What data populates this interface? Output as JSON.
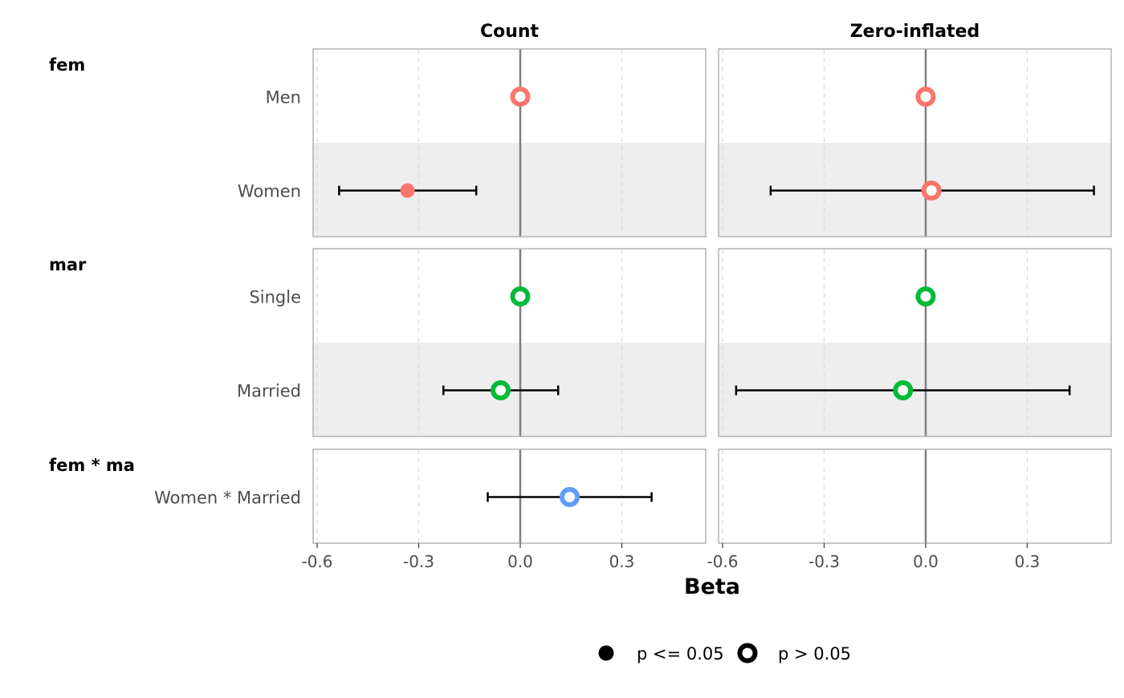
{
  "chart_data": {
    "type": "scatter",
    "subtype": "forest plot with confidence intervals, faceted",
    "xlabel": "Beta",
    "xlim": [
      -0.61,
      0.56
    ],
    "x_ticks": [
      -0.6,
      -0.3,
      0.0,
      0.3
    ],
    "x_tick_labels": [
      "-0.6",
      "-0.3",
      "0.0",
      "0.3"
    ],
    "reference_line": 0,
    "grid": "vertical dashed",
    "facets": [
      "Count",
      "Zero-inflated"
    ],
    "groups": [
      {
        "label": "fem",
        "color": "#F8766D",
        "terms": [
          {
            "label": "Men",
            "shaded": false,
            "Count": {
              "est": 0.0,
              "lo": null,
              "hi": null,
              "sig": false
            },
            "Zero-inflated": {
              "est": 0.0,
              "lo": null,
              "hi": null,
              "sig": false
            }
          },
          {
            "label": "Women",
            "shaded": true,
            "Count": {
              "est": -0.333,
              "lo": -0.535,
              "hi": -0.13,
              "sig": true
            },
            "Zero-inflated": {
              "est": 0.017,
              "lo": -0.458,
              "hi": 0.497,
              "sig": false
            }
          }
        ]
      },
      {
        "label": "mar",
        "color": "#00BA38",
        "terms": [
          {
            "label": "Single",
            "shaded": false,
            "Count": {
              "est": 0.0,
              "lo": null,
              "hi": null,
              "sig": false
            },
            "Zero-inflated": {
              "est": 0.0,
              "lo": null,
              "hi": null,
              "sig": false
            }
          },
          {
            "label": "Married",
            "shaded": true,
            "Count": {
              "est": -0.058,
              "lo": -0.227,
              "hi": 0.112,
              "sig": false
            },
            "Zero-inflated": {
              "est": -0.067,
              "lo": -0.56,
              "hi": 0.425,
              "sig": false
            }
          }
        ]
      },
      {
        "label": "fem * ma",
        "color": "#619CFF",
        "terms": [
          {
            "label": "Women * Married",
            "shaded": false,
            "Count": {
              "est": 0.146,
              "lo": -0.096,
              "hi": 0.388,
              "sig": false
            },
            "Zero-inflated": null
          }
        ]
      }
    ],
    "legend": {
      "position": "bottom",
      "entries": [
        {
          "label": "p <= 0.05",
          "style": "filled"
        },
        {
          "label": "p > 0.05",
          "style": "hollow"
        }
      ]
    }
  }
}
